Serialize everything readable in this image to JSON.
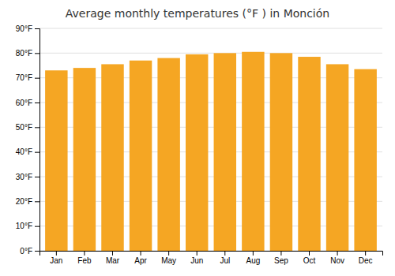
{
  "chart_data": {
    "type": "bar",
    "title": "Average monthly temperatures (°F ) in Monción",
    "categories": [
      "Jan",
      "Feb",
      "Mar",
      "Apr",
      "May",
      "Jun",
      "Jul",
      "Aug",
      "Sep",
      "Oct",
      "Nov",
      "Dec"
    ],
    "values": [
      73,
      74,
      75.5,
      77,
      78,
      79.5,
      80,
      80.5,
      80,
      78.5,
      75.5,
      73.5
    ],
    "color": "#F5A623",
    "ylim": [
      0,
      90
    ],
    "yticks": [
      {
        "value": 0,
        "label": "0°F"
      },
      {
        "value": 10,
        "label": "10°F"
      },
      {
        "value": 20,
        "label": "20°F"
      },
      {
        "value": 30,
        "label": "30°F"
      },
      {
        "value": 40,
        "label": "40°F"
      },
      {
        "value": 50,
        "label": "50°F"
      },
      {
        "value": 60,
        "label": "60°F"
      },
      {
        "value": 70,
        "label": "70°F"
      },
      {
        "value": 80,
        "label": "80°F"
      },
      {
        "value": 90,
        "label": "90°F"
      }
    ],
    "grid": true
  }
}
